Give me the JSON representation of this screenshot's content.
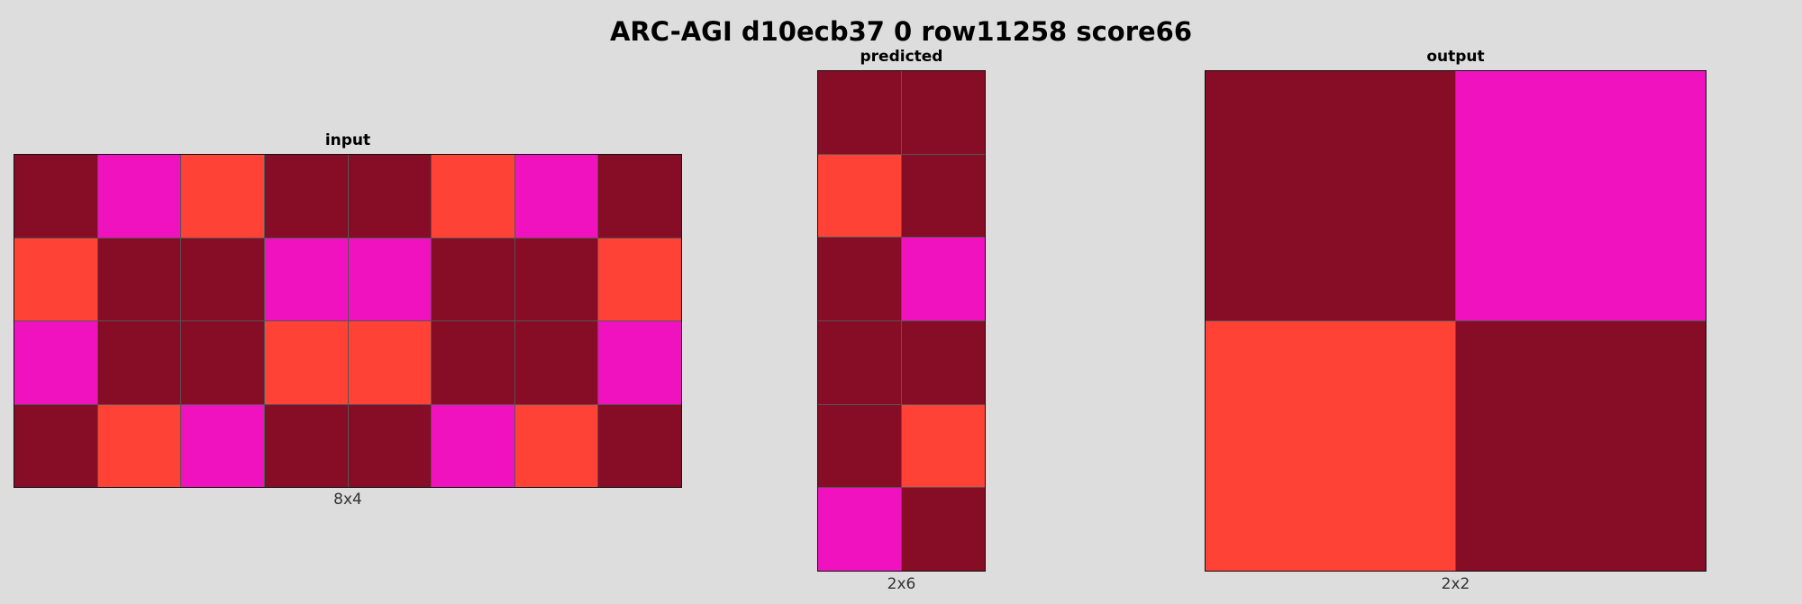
{
  "title": "ARC-AGI d10ecb37 0 row11258 score66",
  "palette": {
    "1": "#870c25",
    "2": "#f012be",
    "3": "#ff4136"
  },
  "panels": [
    {
      "key": "input",
      "title": "input",
      "dims": "8x4",
      "cols": 8,
      "rows": 4,
      "cells": [
        [
          1,
          2,
          3,
          1,
          1,
          3,
          2,
          1
        ],
        [
          3,
          1,
          1,
          2,
          2,
          1,
          1,
          3
        ],
        [
          2,
          1,
          1,
          3,
          3,
          1,
          1,
          2
        ],
        [
          1,
          3,
          2,
          1,
          1,
          2,
          3,
          1
        ]
      ]
    },
    {
      "key": "predicted",
      "title": "predicted",
      "dims": "2x6",
      "cols": 2,
      "rows": 6,
      "cells": [
        [
          1,
          1
        ],
        [
          3,
          1
        ],
        [
          1,
          2
        ],
        [
          1,
          1
        ],
        [
          1,
          3
        ],
        [
          2,
          1
        ]
      ]
    },
    {
      "key": "output",
      "title": "output",
      "dims": "2x2",
      "cols": 2,
      "rows": 2,
      "cells": [
        [
          1,
          2
        ],
        [
          3,
          1
        ]
      ]
    }
  ]
}
